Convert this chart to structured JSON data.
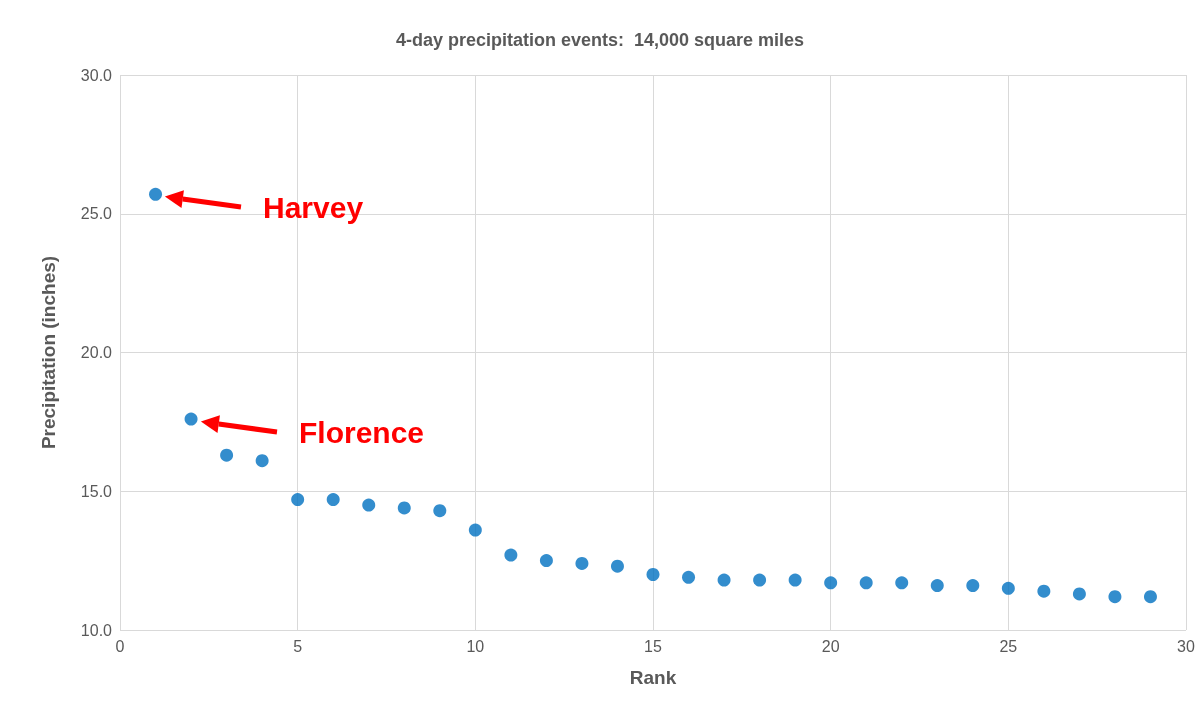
{
  "chart_data": {
    "type": "scatter",
    "title": "4-day precipitation events:  14,000 square miles",
    "xlabel": "Rank",
    "ylabel": "Precipitation (inches)",
    "x": [
      1,
      2,
      3,
      4,
      5,
      6,
      7,
      8,
      9,
      10,
      11,
      12,
      13,
      14,
      15,
      16,
      17,
      18,
      19,
      20,
      21,
      22,
      23,
      24,
      25,
      26,
      27,
      28,
      29
    ],
    "series": [
      {
        "color": "#0070c0",
        "values": [
          25.7,
          17.6,
          16.3,
          16.1,
          14.7,
          14.7,
          14.5,
          14.4,
          14.3,
          13.6,
          12.7,
          12.5,
          12.4,
          12.3,
          12.0,
          11.9,
          11.8,
          11.8,
          11.8,
          11.7,
          11.7,
          11.7,
          11.6,
          11.6,
          11.5,
          11.4,
          11.3,
          11.2,
          11.2
        ]
      }
    ],
    "xlim": [
      0,
      30
    ],
    "xticks": [
      0,
      5,
      10,
      15,
      20,
      25,
      30
    ],
    "ylim": [
      10,
      30
    ],
    "yticks": [
      {
        "value": 10,
        "label": "10.0"
      },
      {
        "value": 15,
        "label": "15.0"
      },
      {
        "value": 20,
        "label": "20.0"
      },
      {
        "value": 25,
        "label": "25.0"
      },
      {
        "value": 30,
        "label": "30.0"
      }
    ],
    "annotations": [
      "Harvey",
      "Florence"
    ],
    "grid": true,
    "marker": "circle"
  }
}
